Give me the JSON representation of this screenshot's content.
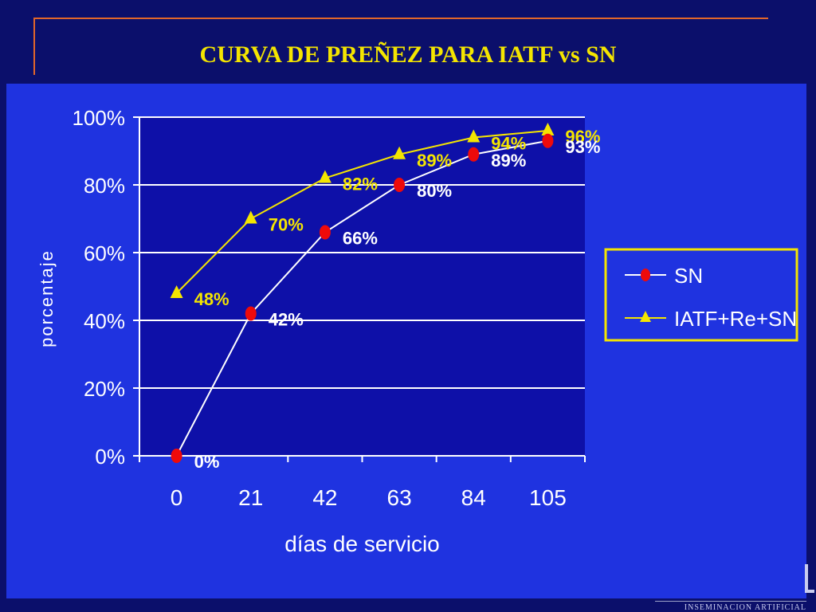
{
  "slide": {
    "title": "CURVA DE PREÑEZ PARA IATF vs SN",
    "footer": "INSEMINACION ARTIFICIAL"
  },
  "colors": {
    "background": "#0b0f6b",
    "panel": "#1f33e0",
    "plot_area": "#0e10a8",
    "title": "#f4e500",
    "sn_marker": "#ee0a0a",
    "sn_line": "#ffffff",
    "iatf": "#f4e500",
    "frame": "#e2662a"
  },
  "chart_data": {
    "type": "line",
    "title": "CURVA DE PREÑEZ PARA IATF vs SN",
    "xlabel": "días de servicio",
    "ylabel": "porcentaje",
    "categories": [
      "0",
      "21",
      "42",
      "63",
      "84",
      "105"
    ],
    "y_ticks": [
      "0%",
      "20%",
      "40%",
      "60%",
      "80%",
      "100%"
    ],
    "ylim": [
      0,
      100
    ],
    "grid": true,
    "legend_position": "right",
    "series": [
      {
        "name": "SN",
        "marker": "circle",
        "values": [
          0,
          42,
          66,
          80,
          89,
          93
        ],
        "labels": [
          "0%",
          "42%",
          "66%",
          "80%",
          "89%",
          "93%"
        ]
      },
      {
        "name": "IATF+Re+SN",
        "marker": "triangle",
        "values": [
          48,
          70,
          82,
          89,
          94,
          96
        ],
        "labels": [
          "48%",
          "70%",
          "82%",
          "89%",
          "94%",
          "96%"
        ]
      }
    ]
  }
}
